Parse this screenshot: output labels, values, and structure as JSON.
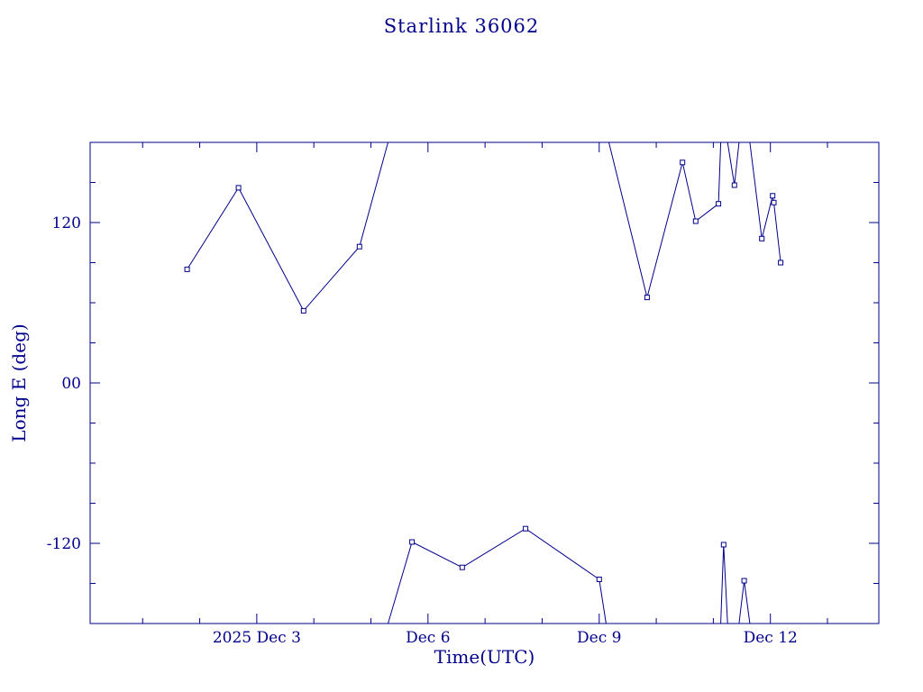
{
  "page": {
    "background": "#ffffff"
  },
  "chart_data": {
    "type": "line",
    "title": "Starlink 36062",
    "xlabel": "Time(UTC)",
    "ylabel": "Long E (deg)",
    "color": "#00008b",
    "background": "#ffffff",
    "marker": "open-square",
    "grid": false,
    "legend": false,
    "x_unit": "day of December 2025 (UTC)",
    "xlim": [
      0.08,
      13.9
    ],
    "ylim": [
      -180,
      180
    ],
    "x_ticks": [
      {
        "value": 3,
        "label": "2025 Dec 3"
      },
      {
        "value": 6,
        "label": "Dec 6"
      },
      {
        "value": 9,
        "label": "Dec 9"
      },
      {
        "value": 12,
        "label": "Dec 12"
      }
    ],
    "x_minor_ticks": [
      1,
      2,
      4,
      5,
      7,
      8,
      10,
      11,
      13
    ],
    "y_ticks": [
      {
        "value": 120,
        "label": "120"
      },
      {
        "value": 0,
        "label": "00"
      },
      {
        "value": -120,
        "label": "-120"
      }
    ],
    "y_minor_ticks": [
      -150,
      -90,
      -60,
      -30,
      30,
      60,
      90,
      150
    ],
    "series_name": "Starlink 36062 longitude east",
    "points": [
      [
        1.78,
        85
      ],
      [
        2.68,
        146
      ],
      [
        3.82,
        54
      ],
      [
        4.8,
        102
      ],
      [
        5.72,
        -119
      ],
      [
        6.6,
        -138
      ],
      [
        7.71,
        -109
      ],
      [
        9.0,
        -147
      ],
      [
        9.84,
        64
      ],
      [
        10.46,
        165
      ],
      [
        10.69,
        121
      ],
      [
        11.09,
        134
      ],
      [
        11.18,
        -121
      ],
      [
        11.37,
        148
      ],
      [
        11.54,
        -148
      ],
      [
        11.85,
        108
      ],
      [
        12.04,
        140
      ],
      [
        12.06,
        135
      ],
      [
        12.18,
        90
      ]
    ],
    "segments": [
      [
        [
          1.78,
          85
        ],
        [
          2.68,
          146
        ],
        [
          3.82,
          54
        ],
        [
          4.8,
          102
        ],
        [
          5.3,
          180
        ]
      ],
      [
        [
          5.3,
          -180
        ],
        [
          5.72,
          -119
        ],
        [
          6.6,
          -138
        ],
        [
          7.71,
          -109
        ],
        [
          9.0,
          -147
        ],
        [
          9.12,
          -180
        ]
      ],
      [
        [
          9.17,
          180
        ],
        [
          9.84,
          64
        ],
        [
          10.46,
          165
        ],
        [
          10.69,
          121
        ],
        [
          11.09,
          134
        ],
        [
          11.13,
          180
        ]
      ],
      [
        [
          11.13,
          -180
        ],
        [
          11.18,
          -121
        ],
        [
          11.25,
          -180
        ]
      ],
      [
        [
          11.25,
          180
        ],
        [
          11.37,
          148
        ],
        [
          11.45,
          180
        ]
      ],
      [
        [
          11.45,
          -180
        ],
        [
          11.54,
          -148
        ],
        [
          11.64,
          -180
        ]
      ],
      [
        [
          11.64,
          180
        ],
        [
          11.85,
          108
        ],
        [
          12.04,
          140
        ],
        [
          12.06,
          135
        ],
        [
          12.18,
          90
        ]
      ]
    ]
  }
}
